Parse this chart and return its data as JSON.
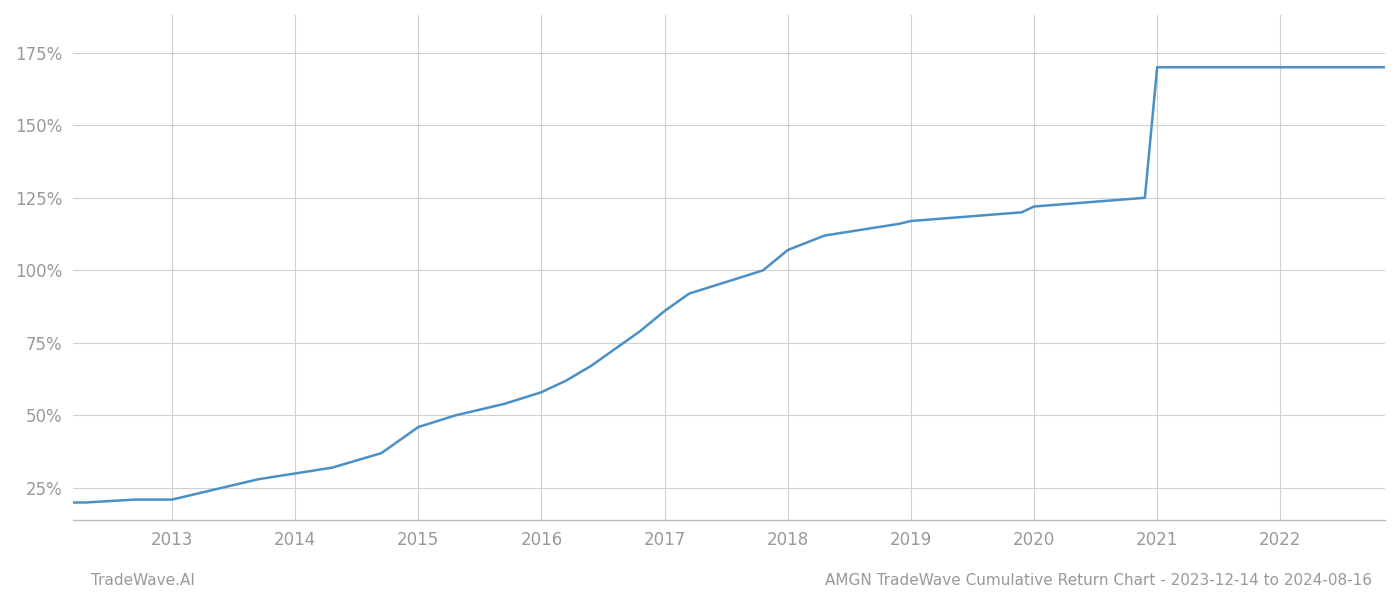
{
  "x_years": [
    2012.0,
    2012.3,
    2012.7,
    2013.0,
    2013.3,
    2013.7,
    2014.0,
    2014.3,
    2014.7,
    2015.0,
    2015.3,
    2015.7,
    2016.0,
    2016.2,
    2016.4,
    2016.6,
    2016.8,
    2017.0,
    2017.2,
    2017.5,
    2017.8,
    2018.0,
    2018.3,
    2018.6,
    2018.9,
    2019.0,
    2019.3,
    2019.6,
    2019.9,
    2020.0,
    2020.3,
    2020.6,
    2020.9,
    2021.0,
    2021.3,
    2021.6,
    2021.9,
    2022.0,
    2022.5,
    2022.9
  ],
  "y_values": [
    20,
    20,
    21,
    21,
    24,
    28,
    30,
    32,
    37,
    46,
    50,
    54,
    58,
    62,
    67,
    73,
    79,
    86,
    92,
    96,
    100,
    107,
    112,
    114,
    116,
    117,
    118,
    119,
    120,
    122,
    123,
    124,
    125,
    170,
    170,
    170,
    170,
    170,
    170,
    170
  ],
  "line_color": "#4a90c4",
  "line_width": 1.8,
  "background_color": "#ffffff",
  "grid_color": "#d0d0d0",
  "ytick_labels": [
    "25%",
    "50%",
    "75%",
    "100%",
    "125%",
    "150%",
    "175%"
  ],
  "ytick_values": [
    25,
    50,
    75,
    100,
    125,
    150,
    175
  ],
  "xtick_labels": [
    "2013",
    "2014",
    "2015",
    "2016",
    "2017",
    "2018",
    "2019",
    "2020",
    "2021",
    "2022"
  ],
  "xtick_values": [
    2013,
    2014,
    2015,
    2016,
    2017,
    2018,
    2019,
    2020,
    2021,
    2022
  ],
  "xlim": [
    2012.2,
    2022.85
  ],
  "ylim": [
    14,
    188
  ],
  "footer_left": "TradeWave.AI",
  "footer_right": "AMGN TradeWave Cumulative Return Chart - 2023-12-14 to 2024-08-16",
  "label_color": "#999999",
  "spine_color": "#bbbbbb"
}
